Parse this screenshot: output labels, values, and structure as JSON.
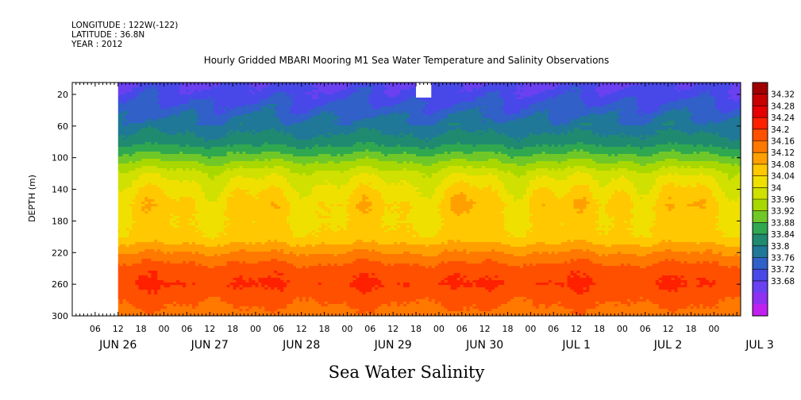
{
  "header": {
    "lines": [
      "LONGITUDE : 122W(-122)",
      "LATITUDE : 36.8N",
      "YEAR : 2012"
    ]
  },
  "chart_data": {
    "type": "heatmap",
    "title": "Hourly Gridded MBARI Mooring M1 Sea Water Temperature and Salinity Observations",
    "xlabel": "Sea Water Salinity",
    "ylabel": "DEPTH (m)",
    "hour_ticks": [
      "06",
      "12",
      "18",
      "00",
      "06",
      "12",
      "18",
      "00",
      "06",
      "12",
      "18",
      "00",
      "06",
      "12",
      "18",
      "00",
      "06",
      "12",
      "18",
      "00",
      "06",
      "12",
      "18",
      "00",
      "06",
      "12",
      "18",
      "00"
    ],
    "day_labels": [
      "JUN 26",
      "JUN 27",
      "JUN 28",
      "JUN 29",
      "JUN 30",
      "JUL 1",
      "JUL 2",
      "JUL 3"
    ],
    "x_range": [
      "2012-06-26T00:00",
      "2012-07-03T07:00"
    ],
    "y_ticks": [
      20,
      60,
      100,
      140,
      180,
      220,
      260,
      300
    ],
    "y_range": [
      5,
      300
    ],
    "y_inverted": true,
    "colorbar": {
      "labels": [
        "34.32",
        "34.28",
        "34.24",
        "34.2",
        "34.16",
        "34.12",
        "34.08",
        "34.04",
        "34",
        "33.96",
        "33.92",
        "33.88",
        "33.84",
        "33.8",
        "33.76",
        "33.72",
        "33.68"
      ],
      "colors": [
        "#a00000",
        "#c80000",
        "#e60000",
        "#ff2000",
        "#ff5000",
        "#ff7800",
        "#ffa000",
        "#ffc800",
        "#f0e000",
        "#d0e000",
        "#a8d800",
        "#70c828",
        "#30a850",
        "#208a70",
        "#207898",
        "#3060c8",
        "#4848e8",
        "#6a40f0",
        "#9030f0",
        "#c020f0"
      ]
    },
    "levels": [
      33.68,
      33.72,
      33.76,
      33.8,
      33.84,
      33.88,
      33.92,
      33.96,
      34,
      34.04,
      34.08,
      34.12,
      34.16,
      34.2,
      34.24,
      34.28,
      34.32
    ],
    "no_data": [
      {
        "from": "2012-06-26T00:00",
        "to": "2012-06-26T12:00",
        "depth": [
          5,
          300
        ]
      },
      {
        "from": "2012-06-29T18:00",
        "to": "2012-06-29T22:00",
        "depth": [
          5,
          24
        ]
      }
    ],
    "profile": [
      {
        "depth": 5,
        "value": 33.76
      },
      {
        "depth": 20,
        "value": 33.78
      },
      {
        "depth": 40,
        "value": 33.82
      },
      {
        "depth": 60,
        "value": 33.86
      },
      {
        "depth": 80,
        "value": 33.9
      },
      {
        "depth": 100,
        "value": 33.98
      },
      {
        "depth": 120,
        "value": 34.06
      },
      {
        "depth": 140,
        "value": 34.1
      },
      {
        "depth": 160,
        "value": 34.13
      },
      {
        "depth": 180,
        "value": 34.12
      },
      {
        "depth": 200,
        "value": 34.13
      },
      {
        "depth": 220,
        "value": 34.2
      },
      {
        "depth": 240,
        "value": 34.26
      },
      {
        "depth": 260,
        "value": 34.28
      },
      {
        "depth": 280,
        "value": 34.25
      },
      {
        "depth": 300,
        "value": 34.22
      }
    ]
  }
}
